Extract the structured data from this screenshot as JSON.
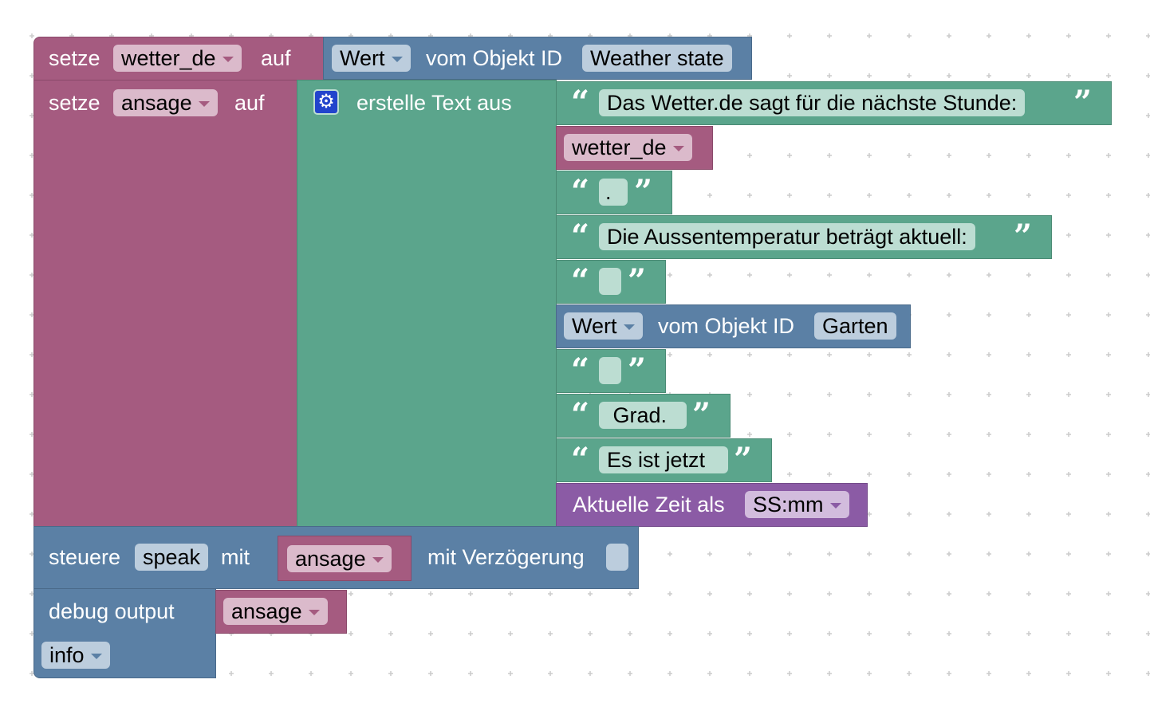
{
  "colors": {
    "variables": "#a55b80",
    "iobroker": "#5b80a5",
    "text": "#5ba58c",
    "time": "#8b5ba5"
  },
  "block_set1": {
    "label": "setze",
    "var": "wetter_de",
    "auf": "auf"
  },
  "get_value1": {
    "attr": "Wert",
    "label": "vom Objekt ID",
    "object": "Weather state"
  },
  "block_set2": {
    "label": "setze",
    "var": "ansage",
    "auf": "auf"
  },
  "text_join": {
    "icon": "gear-icon",
    "label": "erstelle Text aus"
  },
  "items": {
    "t1": "Das Wetter.de sagt für die nächste Stunde:",
    "v2": "wetter_de",
    "t3": ".",
    "t4": "Die Aussentemperatur beträgt aktuell:",
    "t5": " ",
    "g6": {
      "attr": "Wert",
      "label": "vom Objekt ID",
      "object": "Garten"
    },
    "t7": " ",
    "t8": " Grad. ",
    "t9": "Es ist jetzt ",
    "time10": {
      "label": "Aktuelle Zeit als",
      "format": "SS:mm"
    }
  },
  "control": {
    "label": "steuere",
    "target": "speak",
    "mit": "mit",
    "var": "ansage",
    "delay_label": "mit Verzögerung",
    "delay_checked": false
  },
  "debug": {
    "label": "debug output",
    "var": "ansage",
    "level": "info"
  },
  "quote_open": "“",
  "quote_close": "”"
}
